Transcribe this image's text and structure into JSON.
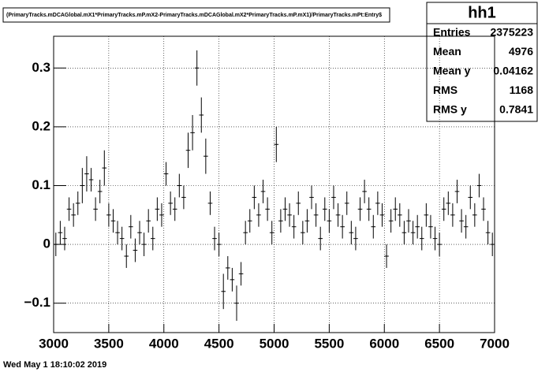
{
  "chart_data": {
    "type": "errorbar",
    "title": "(PrimaryTracks.mDCAGlobal.mX1*PrimaryTracks.mP.mX2-PrimaryTracks.mDCAGlobal.mX2*PrimaryTracks.mP.mX1)/PrimaryTracks.mPt:Entry$",
    "footer": "Wed May  1 18:10:02 2019",
    "stats": {
      "name": "hh1",
      "rows": [
        [
          "Entries",
          "2375223"
        ],
        [
          "Mean",
          "4976"
        ],
        [
          "Mean y",
          "0.04162"
        ],
        [
          "RMS",
          "1168"
        ],
        [
          "RMS y",
          "0.7841"
        ]
      ]
    },
    "xlim": [
      3000,
      7000
    ],
    "xticks": [
      3000,
      3500,
      4000,
      4500,
      5000,
      5500,
      6000,
      6500,
      7000
    ],
    "ylim": [
      -0.15,
      0.354
    ],
    "yticks": [
      {
        "value": -0.1,
        "label": "−0.1"
      },
      0,
      0.1,
      0.2,
      0.3
    ],
    "grid": true,
    "color": "#000000",
    "x": [
      3020,
      3060,
      3100,
      3140,
      3180,
      3220,
      3260,
      3300,
      3340,
      3380,
      3420,
      3460,
      3500,
      3540,
      3580,
      3620,
      3660,
      3700,
      3740,
      3780,
      3820,
      3860,
      3900,
      3940,
      3980,
      4020,
      4060,
      4100,
      4140,
      4180,
      4220,
      4260,
      4300,
      4340,
      4380,
      4420,
      4460,
      4500,
      4540,
      4580,
      4620,
      4660,
      4700,
      4740,
      4780,
      4820,
      4860,
      4900,
      4940,
      4980,
      5020,
      5060,
      5100,
      5140,
      5180,
      5220,
      5260,
      5300,
      5340,
      5380,
      5420,
      5460,
      5500,
      5540,
      5580,
      5620,
      5660,
      5700,
      5740,
      5780,
      5820,
      5860,
      5900,
      5940,
      5980,
      6020,
      6060,
      6100,
      6140,
      6180,
      6220,
      6260,
      6300,
      6340,
      6380,
      6420,
      6460,
      6500,
      6540,
      6580,
      6620,
      6660,
      6700,
      6740,
      6780,
      6820,
      6860,
      6900,
      6940,
      6980
    ],
    "values": [
      0.0,
      0.02,
      0.01,
      0.06,
      0.05,
      0.07,
      0.1,
      0.12,
      0.11,
      0.06,
      0.09,
      0.13,
      0.05,
      0.04,
      0.02,
      0.01,
      -0.02,
      0.03,
      -0.01,
      0.02,
      0.0,
      0.04,
      0.01,
      0.06,
      0.05,
      0.12,
      0.07,
      0.06,
      0.1,
      0.08,
      0.16,
      0.19,
      0.3,
      0.22,
      0.15,
      0.07,
      0.01,
      0.0,
      -0.08,
      -0.04,
      -0.06,
      -0.1,
      -0.05,
      0.02,
      0.04,
      0.08,
      0.05,
      0.09,
      0.06,
      0.02,
      0.17,
      0.04,
      0.06,
      0.05,
      0.03,
      0.07,
      0.02,
      0.04,
      0.08,
      0.05,
      0.01,
      0.06,
      0.04,
      0.08,
      0.05,
      0.03,
      0.07,
      0.02,
      0.01,
      0.06,
      0.09,
      0.06,
      0.03,
      0.07,
      0.05,
      -0.02,
      0.04,
      0.06,
      0.05,
      0.02,
      0.04,
      0.02,
      0.03,
      0.01,
      0.05,
      0.03,
      0.01,
      0.0,
      0.06,
      0.07,
      0.05,
      0.09,
      0.04,
      0.03,
      0.08,
      0.05,
      0.1,
      0.06,
      0.02,
      0.0
    ],
    "errors": [
      0.02,
      0.02,
      0.02,
      0.02,
      0.02,
      0.02,
      0.03,
      0.03,
      0.02,
      0.02,
      0.02,
      0.03,
      0.02,
      0.02,
      0.02,
      0.02,
      0.02,
      0.02,
      0.02,
      0.02,
      0.02,
      0.02,
      0.02,
      0.02,
      0.02,
      0.02,
      0.02,
      0.02,
      0.02,
      0.02,
      0.03,
      0.03,
      0.03,
      0.03,
      0.03,
      0.02,
      0.02,
      0.02,
      0.03,
      0.02,
      0.02,
      0.03,
      0.02,
      0.02,
      0.02,
      0.02,
      0.02,
      0.02,
      0.02,
      0.02,
      0.03,
      0.02,
      0.02,
      0.02,
      0.02,
      0.02,
      0.02,
      0.02,
      0.02,
      0.02,
      0.02,
      0.02,
      0.02,
      0.02,
      0.02,
      0.02,
      0.02,
      0.02,
      0.02,
      0.02,
      0.02,
      0.02,
      0.02,
      0.02,
      0.02,
      0.02,
      0.02,
      0.02,
      0.02,
      0.02,
      0.02,
      0.02,
      0.02,
      0.02,
      0.02,
      0.02,
      0.02,
      0.02,
      0.02,
      0.02,
      0.02,
      0.02,
      0.02,
      0.02,
      0.02,
      0.02,
      0.02,
      0.02,
      0.02,
      0.02
    ]
  }
}
